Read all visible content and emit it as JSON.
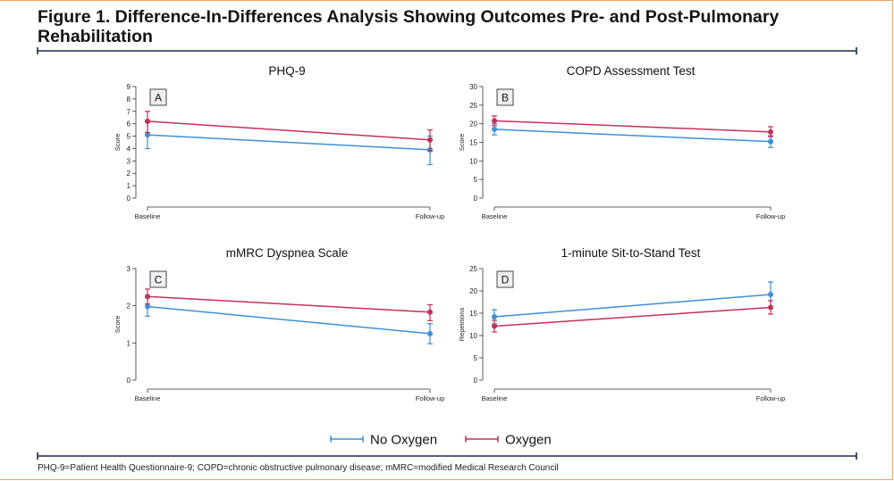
{
  "figure": {
    "title": "Figure 1. Difference-In-Differences Analysis Showing Outcomes Pre- and Post-Pulmonary Rehabilitation",
    "footnote": "PHQ-9=Patient Health Questionnaire-9; COPD=chronic obstructive pulmonary disease; mMRC=modified Medical Research Council",
    "colors": {
      "no_oxygen": "#3d8fd6",
      "oxygen": "#c4305a",
      "rule": "#1a2a4a"
    }
  },
  "legend": {
    "placement": "bottom-center",
    "entries": [
      "No Oxygen",
      "Oxygen"
    ]
  },
  "chart_data": [
    {
      "type": "line",
      "panel_label": "A",
      "title": "PHQ-9",
      "ylabel": "Score",
      "xlabel": "",
      "categories": [
        "Baseline",
        "Follow-up"
      ],
      "ylim": [
        0,
        9
      ],
      "yticks": [
        0,
        1,
        2,
        3,
        4,
        5,
        6,
        7,
        8,
        9
      ],
      "grid": false,
      "series": [
        {
          "name": "No Oxygen",
          "values": [
            5.1,
            3.9
          ],
          "ci_low": [
            4.0,
            2.7
          ],
          "ci_high": [
            6.1,
            5.0
          ]
        },
        {
          "name": "Oxygen",
          "values": [
            6.2,
            4.7
          ],
          "ci_low": [
            5.3,
            3.8
          ],
          "ci_high": [
            7.0,
            5.5
          ]
        }
      ]
    },
    {
      "type": "line",
      "panel_label": "B",
      "title": "COPD Assessment Test",
      "ylabel": "Score",
      "xlabel": "",
      "categories": [
        "Baseline",
        "Follow-up"
      ],
      "ylim": [
        0,
        30
      ],
      "yticks": [
        0,
        5,
        10,
        15,
        20,
        25,
        30
      ],
      "grid": false,
      "series": [
        {
          "name": "No Oxygen",
          "values": [
            18.5,
            15.2
          ],
          "ci_low": [
            17.0,
            13.6
          ],
          "ci_high": [
            20.0,
            16.8
          ]
        },
        {
          "name": "Oxygen",
          "values": [
            20.8,
            17.8
          ],
          "ci_low": [
            19.5,
            16.5
          ],
          "ci_high": [
            22.1,
            19.2
          ]
        }
      ]
    },
    {
      "type": "line",
      "panel_label": "C",
      "title": "mMRC Dyspnea Scale",
      "ylabel": "Score",
      "xlabel": "",
      "categories": [
        "Baseline",
        "Follow-up"
      ],
      "ylim": [
        0,
        3
      ],
      "yticks": [
        0,
        1,
        2,
        3
      ],
      "grid": false,
      "series": [
        {
          "name": "No Oxygen",
          "values": [
            1.98,
            1.25
          ],
          "ci_low": [
            1.72,
            0.98
          ],
          "ci_high": [
            2.22,
            1.52
          ]
        },
        {
          "name": "Oxygen",
          "values": [
            2.25,
            1.83
          ],
          "ci_low": [
            2.05,
            1.6
          ],
          "ci_high": [
            2.45,
            2.03
          ]
        }
      ]
    },
    {
      "type": "line",
      "panel_label": "D",
      "title": "1-minute Sit-to-Stand Test",
      "ylabel": "Repetitions",
      "xlabel": "",
      "categories": [
        "Baseline",
        "Follow-up"
      ],
      "ylim": [
        0,
        25
      ],
      "yticks": [
        0,
        5,
        10,
        15,
        20,
        25
      ],
      "grid": false,
      "series": [
        {
          "name": "No Oxygen",
          "values": [
            14.2,
            19.2
          ],
          "ci_low": [
            12.6,
            16.4
          ],
          "ci_high": [
            15.8,
            22.0
          ]
        },
        {
          "name": "Oxygen",
          "values": [
            12.1,
            16.3
          ],
          "ci_low": [
            10.8,
            14.8
          ],
          "ci_high": [
            13.4,
            17.8
          ]
        }
      ]
    }
  ]
}
